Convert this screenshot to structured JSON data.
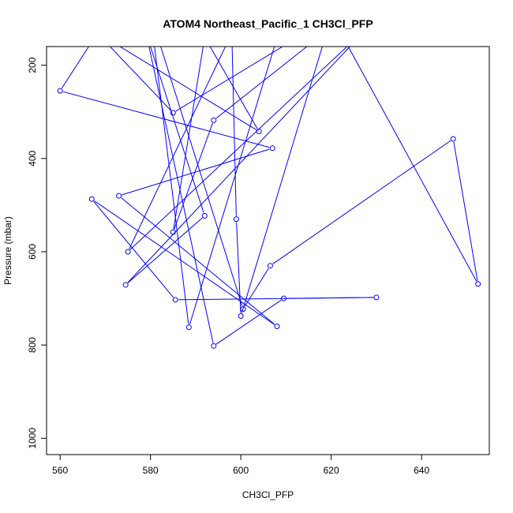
{
  "chart_data": {
    "type": "line",
    "title": "ATOM4 Northeast_Pacific_1 CH3Cl_PFP",
    "xlabel": "CH3Cl_PFP",
    "ylabel": "Pressure (mbar)",
    "xlim": [
      557,
      655
    ],
    "ylim": [
      1035,
      160
    ],
    "y_reversed": true,
    "grid": false,
    "x_ticks": [
      560,
      580,
      600,
      620,
      640
    ],
    "y_ticks": [
      200,
      400,
      600,
      800,
      1000
    ],
    "series": [
      {
        "color": "#0000ff",
        "marker": "open-circle",
        "points": [
          [
            567,
            150
          ],
          [
            560,
            255
          ],
          [
            607,
            378
          ],
          [
            573,
            480
          ],
          [
            608,
            760
          ],
          [
            567,
            487
          ],
          [
            585.5,
            703
          ],
          [
            630,
            698
          ],
          [
            609.5,
            700
          ],
          [
            594,
            802
          ],
          [
            579,
            130
          ],
          [
            592,
            523
          ],
          [
            574.5,
            671
          ],
          [
            629,
            110
          ],
          [
            575,
            600
          ],
          [
            598,
            131
          ],
          [
            599,
            530
          ],
          [
            600,
            738
          ],
          [
            620,
            97
          ],
          [
            585,
            302
          ],
          [
            568,
            129
          ],
          [
            604,
            342
          ],
          [
            592,
            140
          ],
          [
            585,
            558
          ],
          [
            594,
            318
          ],
          [
            621,
            111
          ],
          [
            652.5,
            669
          ],
          [
            647,
            358
          ],
          [
            606.5,
            630
          ],
          [
            600.5,
            723
          ],
          [
            580,
            90
          ],
          [
            588.5,
            762
          ],
          [
            609,
            110
          ]
        ]
      }
    ]
  }
}
